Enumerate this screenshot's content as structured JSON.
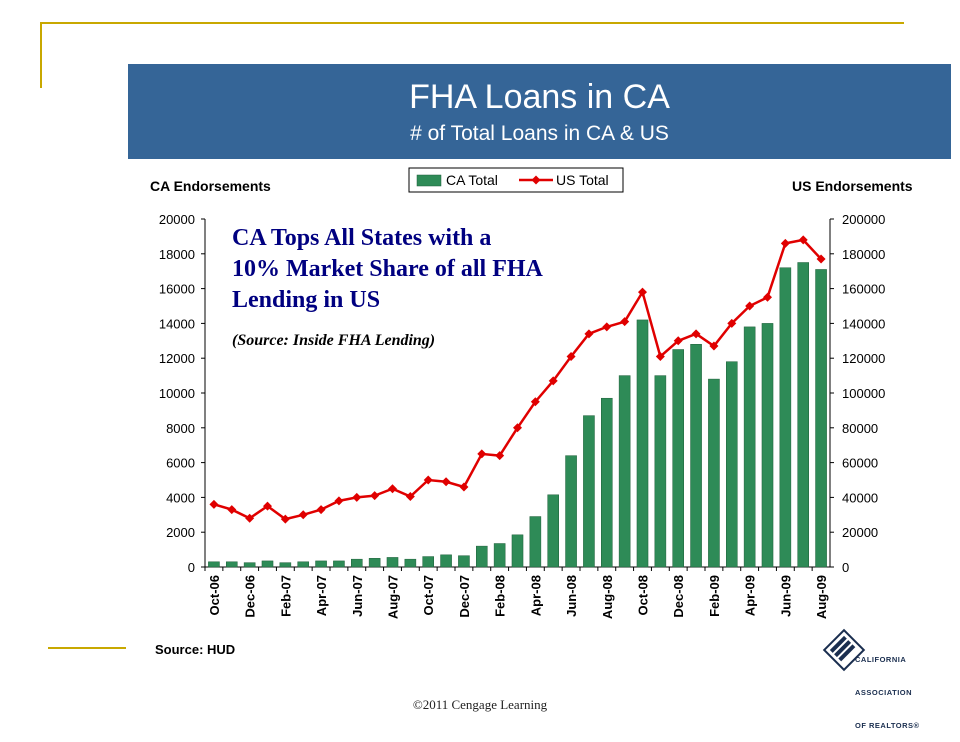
{
  "colors": {
    "header_bg": "#356597",
    "bar": "#2e8b57",
    "line": "#e00000",
    "annotation": "#000080",
    "decor_line": "#c8a800"
  },
  "header": {
    "title": "FHA Loans in CA",
    "subtitle": "# of Total Loans in CA & US"
  },
  "footer": {
    "source": "Source: HUD",
    "copyright": "©2011 Cengage Learning",
    "logo": {
      "icon": "car-logo-icon",
      "text_lines": [
        "CALIFORNIA",
        "ASSOCIATION",
        "OF REALTORS®"
      ]
    }
  },
  "chart_data": {
    "type": "bar",
    "title": "",
    "ylabel_left": "CA Endorsements",
    "ylabel_right": "US Endorsements",
    "ylim_left": [
      0,
      20000
    ],
    "ylim_right": [
      0,
      200000
    ],
    "yticks_left": [
      "0",
      "2000",
      "4000",
      "6000",
      "8000",
      "10000",
      "12000",
      "14000",
      "16000",
      "18000",
      "20000"
    ],
    "yticks_right": [
      "0",
      "20000",
      "40000",
      "60000",
      "80000",
      "100000",
      "120000",
      "140000",
      "160000",
      "180000",
      "200000"
    ],
    "grid": false,
    "legend_position": "top-center",
    "annotation": {
      "lines": [
        "CA Tops All States with a",
        "10% Market Share of all FHA",
        "Lending in US"
      ],
      "source_note": "(Source: Inside FHA Lending)"
    },
    "categories": [
      "Oct-06",
      "Nov-06",
      "Dec-06",
      "Jan-07",
      "Feb-07",
      "Mar-07",
      "Apr-07",
      "May-07",
      "Jun-07",
      "Jul-07",
      "Aug-07",
      "Sep-07",
      "Oct-07",
      "Nov-07",
      "Dec-07",
      "Jan-08",
      "Feb-08",
      "Mar-08",
      "Apr-08",
      "May-08",
      "Jun-08",
      "Jul-08",
      "Aug-08",
      "Sep-08",
      "Oct-08",
      "Nov-08",
      "Dec-08",
      "Jan-09",
      "Feb-09",
      "Mar-09",
      "Apr-09",
      "May-09",
      "Jun-09",
      "Jul-09",
      "Aug-09"
    ],
    "tick_labels": [
      "Oct-06",
      "Dec-06",
      "Feb-07",
      "Apr-07",
      "Jun-07",
      "Aug-07",
      "Oct-07",
      "Dec-07",
      "Feb-08",
      "Apr-08",
      "Jun-08",
      "Aug-08",
      "Oct-08",
      "Dec-08",
      "Feb-09",
      "Apr-09",
      "Jun-09",
      "Aug-09"
    ],
    "series": [
      {
        "name": "CA Total",
        "type": "bar",
        "axis": "left",
        "values": [
          300,
          300,
          250,
          350,
          250,
          300,
          350,
          350,
          450,
          500,
          550,
          450,
          600,
          700,
          650,
          1200,
          1350,
          1850,
          2900,
          4150,
          6400,
          8700,
          9700,
          11000,
          14200,
          11000,
          12500,
          12800,
          10800,
          11800,
          13800,
          14000,
          17200,
          17500,
          17100
        ]
      },
      {
        "name": "US Total",
        "type": "line",
        "axis": "right",
        "values": [
          36000,
          33000,
          28000,
          35000,
          27500,
          30000,
          33000,
          38000,
          40000,
          41000,
          45000,
          40500,
          50000,
          49000,
          46000,
          65000,
          64000,
          80000,
          95000,
          107000,
          121000,
          134000,
          138000,
          141000,
          158000,
          121000,
          130000,
          134000,
          127000,
          140000,
          150000,
          155000,
          186000,
          188000,
          177000
        ]
      }
    ]
  }
}
